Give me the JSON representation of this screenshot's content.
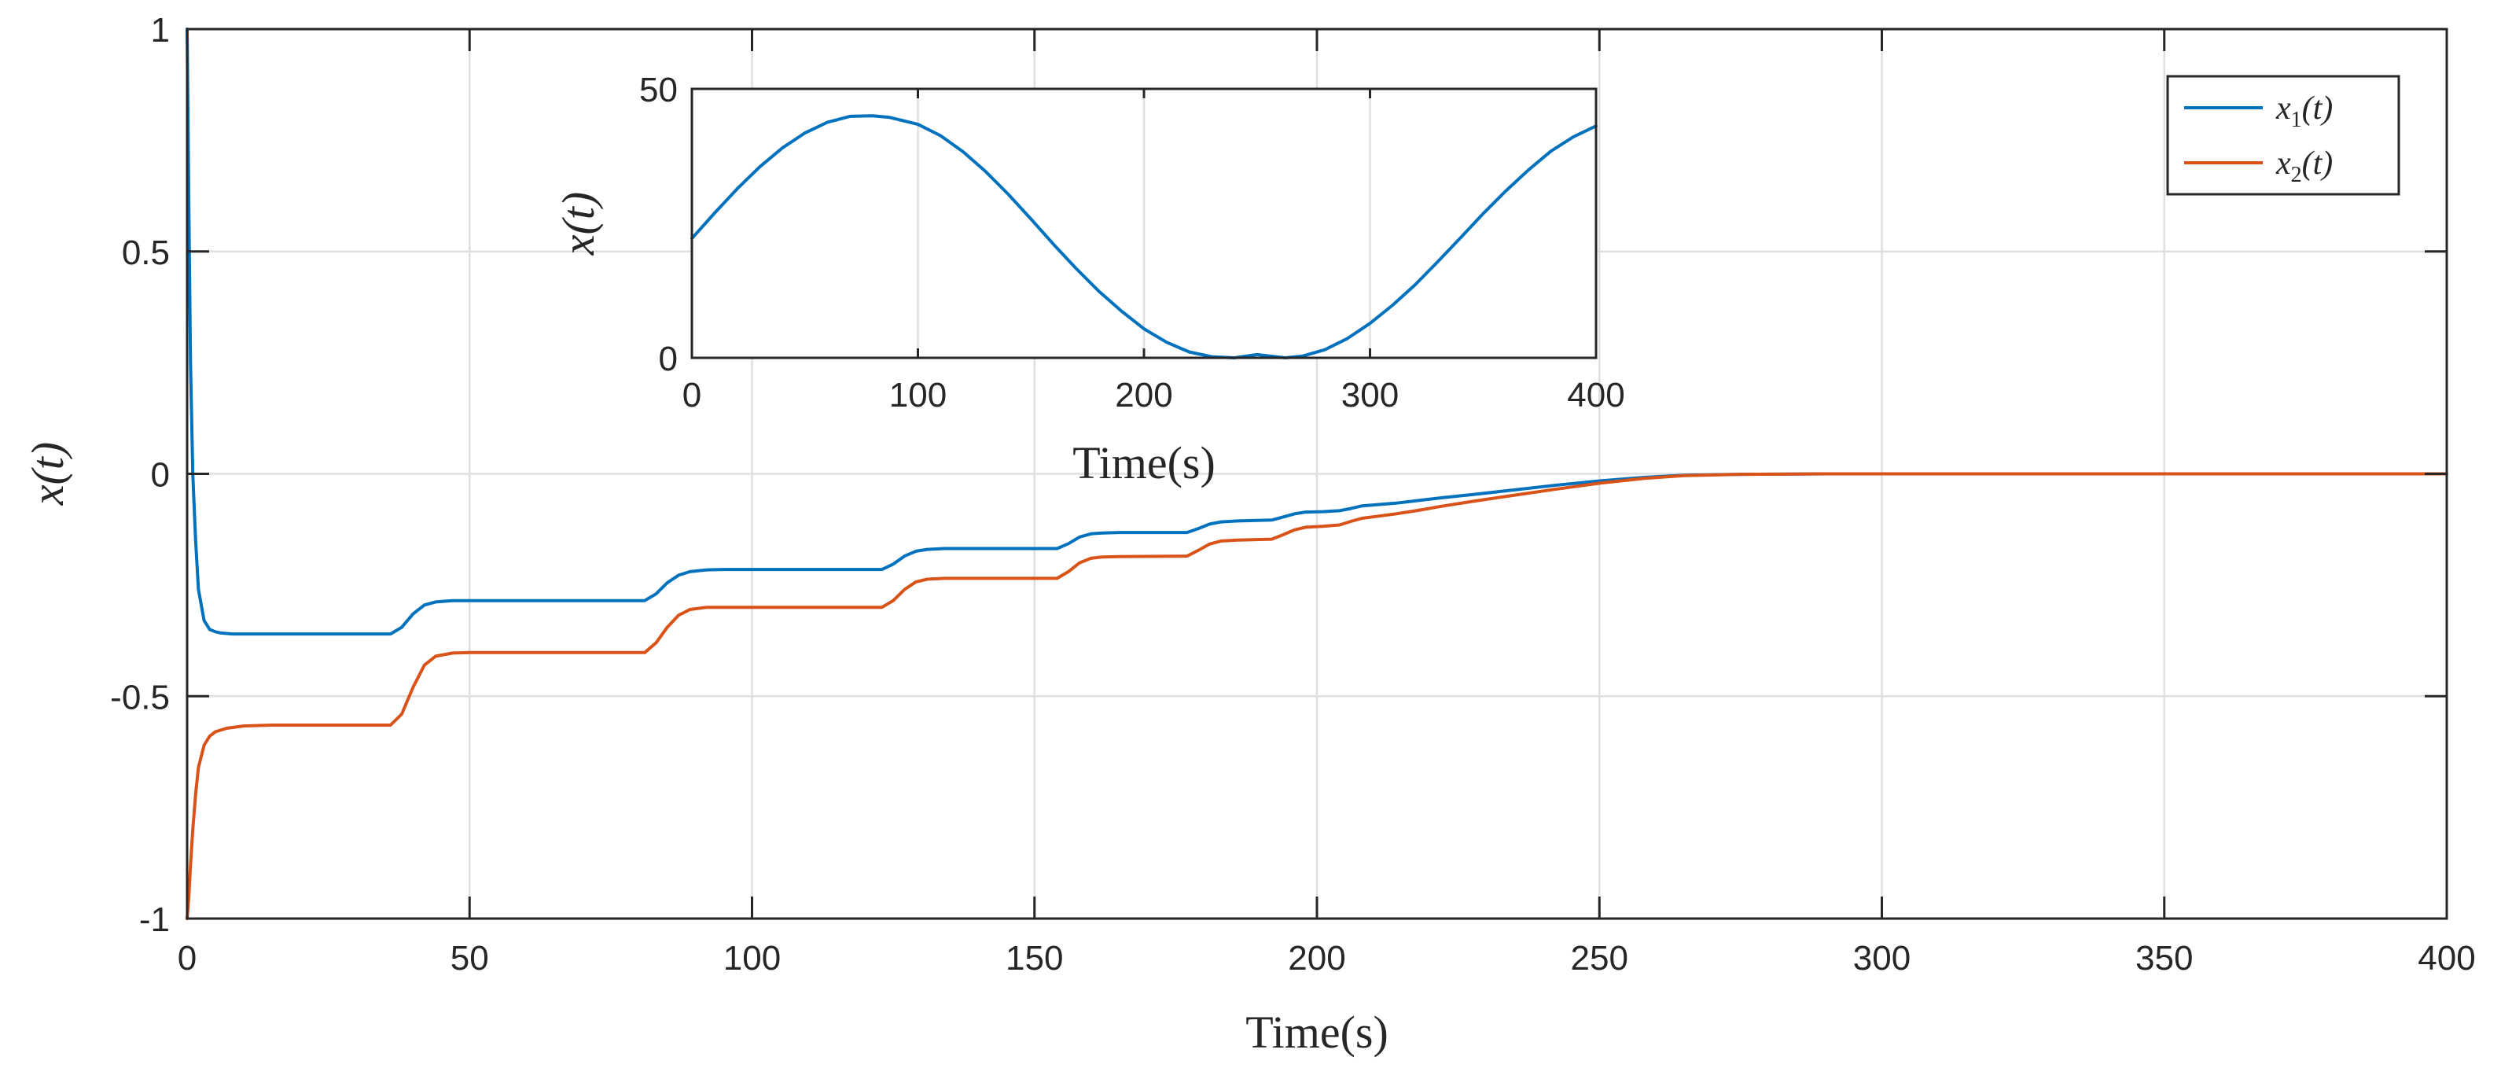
{
  "chart_data": [
    {
      "id": "main",
      "type": "line",
      "title": "",
      "xlabel": "Time(s)",
      "ylabel": "x(t)",
      "xlim": [
        0,
        400
      ],
      "ylim": [
        -1,
        1
      ],
      "xticks": [
        0,
        50,
        100,
        150,
        200,
        250,
        300,
        350,
        400
      ],
      "yticks": [
        -1,
        -0.5,
        0,
        0.5,
        1
      ],
      "xtick_labels": [
        "0",
        "50",
        "100",
        "150",
        "200",
        "250",
        "300",
        "350",
        "400"
      ],
      "ytick_labels": [
        "-1",
        "-0.5",
        "0",
        "0.5",
        "1"
      ],
      "grid": true,
      "legend": {
        "position": "top-right",
        "entries": [
          "x1(t)",
          "x2(t)"
        ]
      },
      "series": [
        {
          "name": "x1(t)",
          "color": "#0072BD",
          "x": [
            0,
            0.3,
            0.6,
            1,
            1.5,
            2,
            3,
            4,
            5,
            6,
            8,
            36,
            38,
            40,
            42,
            44,
            47,
            50,
            81,
            83,
            85,
            87,
            89,
            92,
            95,
            123,
            125,
            127,
            129,
            131,
            134,
            154,
            156,
            158,
            160,
            162,
            165,
            177,
            179,
            181,
            183,
            186,
            192,
            194,
            196,
            198,
            201,
            204,
            206,
            208,
            211,
            214,
            218,
            222,
            228,
            235,
            242,
            250,
            258,
            265,
            275,
            290,
            400
          ],
          "y": [
            1,
            0.6,
            0.25,
            0,
            -0.15,
            -0.26,
            -0.33,
            -0.35,
            -0.355,
            -0.358,
            -0.36,
            -0.36,
            -0.345,
            -0.315,
            -0.295,
            -0.288,
            -0.285,
            -0.285,
            -0.285,
            -0.27,
            -0.245,
            -0.228,
            -0.22,
            -0.216,
            -0.215,
            -0.215,
            -0.203,
            -0.185,
            -0.174,
            -0.17,
            -0.168,
            -0.168,
            -0.157,
            -0.142,
            -0.135,
            -0.133,
            -0.132,
            -0.132,
            -0.123,
            -0.113,
            -0.108,
            -0.106,
            -0.104,
            -0.097,
            -0.09,
            -0.086,
            -0.085,
            -0.083,
            -0.078,
            -0.072,
            -0.069,
            -0.066,
            -0.06,
            -0.054,
            -0.046,
            -0.036,
            -0.026,
            -0.016,
            -0.008,
            -0.003,
            -0.001,
            0,
            0
          ]
        },
        {
          "name": "x2(t)",
          "color": "#D95319",
          "x": [
            0,
            0.3,
            0.6,
            1,
            1.5,
            2,
            3,
            4,
            5,
            7,
            10,
            15,
            36,
            38,
            40,
            42,
            44,
            47,
            50,
            81,
            83,
            85,
            87,
            89,
            92,
            95,
            123,
            125,
            127,
            129,
            131,
            134,
            154,
            156,
            158,
            160,
            162,
            165,
            177,
            179,
            181,
            183,
            186,
            192,
            194,
            196,
            198,
            201,
            204,
            206,
            208,
            211,
            214,
            218,
            222,
            228,
            235,
            242,
            250,
            258,
            265,
            275,
            290,
            400
          ],
          "y": [
            -1,
            -0.95,
            -0.88,
            -0.8,
            -0.72,
            -0.66,
            -0.61,
            -0.59,
            -0.58,
            -0.572,
            -0.567,
            -0.565,
            -0.565,
            -0.54,
            -0.48,
            -0.43,
            -0.41,
            -0.403,
            -0.402,
            -0.402,
            -0.38,
            -0.345,
            -0.318,
            -0.305,
            -0.3,
            -0.3,
            -0.3,
            -0.285,
            -0.26,
            -0.243,
            -0.237,
            -0.235,
            -0.235,
            -0.22,
            -0.2,
            -0.19,
            -0.187,
            -0.186,
            -0.185,
            -0.172,
            -0.158,
            -0.151,
            -0.149,
            -0.147,
            -0.137,
            -0.126,
            -0.12,
            -0.118,
            -0.115,
            -0.107,
            -0.1,
            -0.095,
            -0.09,
            -0.082,
            -0.073,
            -0.061,
            -0.048,
            -0.035,
            -0.021,
            -0.01,
            -0.004,
            -0.001,
            0,
            0
          ]
        }
      ]
    },
    {
      "id": "inset",
      "type": "line",
      "title": "",
      "xlabel": "Time(s)",
      "ylabel": "x(t)",
      "xlim": [
        0,
        400
      ],
      "ylim": [
        0,
        50
      ],
      "xticks": [
        0,
        100,
        200,
        300,
        400
      ],
      "yticks": [
        0,
        50
      ],
      "xtick_labels": [
        "0",
        "100",
        "200",
        "300",
        "400"
      ],
      "ytick_labels": [
        "0",
        "50"
      ],
      "grid": true,
      "series": [
        {
          "name": "x(t)",
          "color": "#0072BD",
          "x": [
            0,
            10,
            20,
            30,
            40,
            50,
            60,
            70,
            80,
            87.5,
            100,
            110,
            120,
            130,
            140,
            150,
            160,
            170,
            180,
            190,
            200,
            210,
            220,
            230,
            240,
            250,
            262.5,
            270,
            280,
            290,
            300,
            310,
            320,
            330,
            340,
            350,
            360,
            370,
            380,
            390,
            400
          ],
          "y": [
            22.2,
            26.9,
            31.4,
            35.5,
            39.0,
            41.8,
            43.8,
            44.9,
            45.0,
            44.7,
            43.4,
            41.3,
            38.3,
            34.6,
            30.4,
            25.8,
            21.1,
            16.6,
            12.4,
            8.7,
            5.4,
            2.9,
            1.1,
            0.2,
            0.0,
            0.6,
            0.0,
            0.3,
            1.5,
            3.6,
            6.4,
            9.8,
            13.6,
            17.9,
            22.3,
            26.8,
            31.0,
            34.9,
            38.4,
            41.1,
            43.1
          ]
        }
      ]
    }
  ]
}
